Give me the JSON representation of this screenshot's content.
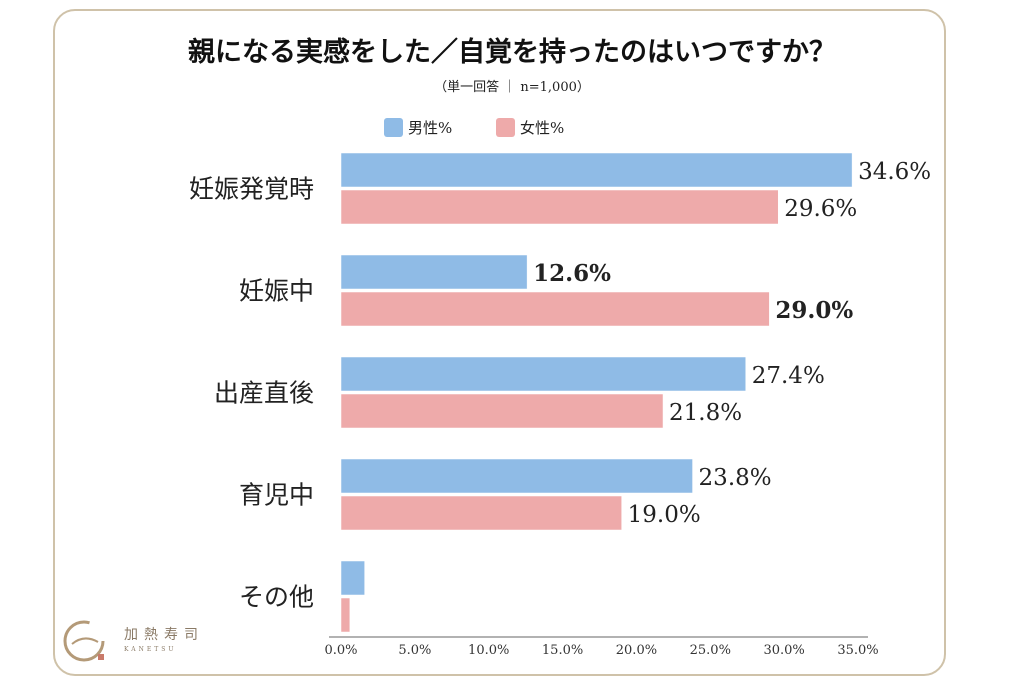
{
  "colors": {
    "male": "#8fbbe6",
    "female": "#eeaaaa",
    "frame": "#cfc2a9",
    "axis": "#666666"
  },
  "brand": {
    "name": "加熱寿司",
    "sub": "KANETSU",
    "icon": "kanetsu-logo-icon"
  },
  "chart_data": {
    "type": "bar",
    "orientation": "horizontal",
    "title": "親になる実感をした／自覚を持ったのはいつですか？",
    "subtitle": "（単一回答 ｜ n=1,000）",
    "categories": [
      "妊娠発覚時",
      "妊娠中",
      "出産直後",
      "育児中",
      "その他"
    ],
    "series": [
      {
        "name": "男性%",
        "values": [
          34.6,
          12.6,
          27.4,
          23.8,
          1.6
        ],
        "labels": [
          "34.6%",
          "12.6%",
          "27.4%",
          "23.8%",
          ""
        ],
        "bold": [
          false,
          true,
          false,
          false,
          false
        ]
      },
      {
        "name": "女性%",
        "values": [
          29.6,
          29.0,
          21.8,
          19.0,
          0.6
        ],
        "labels": [
          "29.6%",
          "29.0%",
          "21.8%",
          "19.0%",
          ""
        ],
        "bold": [
          false,
          true,
          false,
          false,
          false
        ]
      }
    ],
    "xlim": [
      0,
      35
    ],
    "xticks": [
      "0.0%",
      "5.0%",
      "10.0%",
      "15.0%",
      "20.0%",
      "25.0%",
      "30.0%",
      "35.0%"
    ],
    "xtick_values": [
      0,
      5,
      10,
      15,
      20,
      25,
      30,
      35
    ],
    "legend_position": "top"
  }
}
